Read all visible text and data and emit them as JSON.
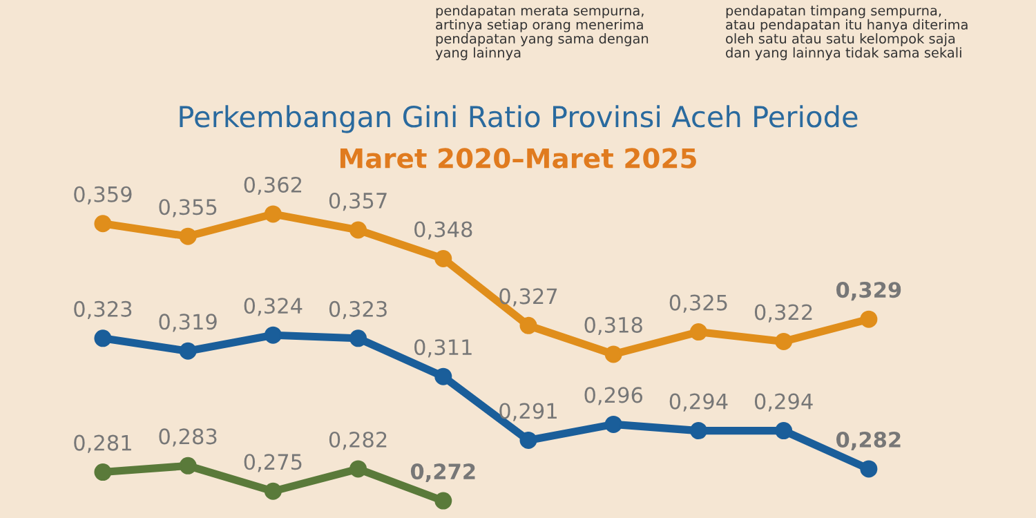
{
  "chart_data": {
    "type": "line",
    "title": "Perkembangan Gini Ratio Provinsi Aceh Periode",
    "subtitle": "Maret 2020–Maret 2025",
    "annotations": [
      "pendapatan merata sempurna,\nartinya setiap orang menerima\npendapatan yang sama dengan\nyang lainnya",
      "pendapatan timpang sempurna,\natau pendapatan itu hanya diterima\noleh satu atau satu kelompok saja\ndan yang lainnya tidak sama sekali"
    ],
    "categories": [
      null,
      null,
      null,
      null,
      null,
      null,
      null,
      null,
      null,
      null,
      null
    ],
    "series": [
      {
        "color": "#e08e1b",
        "values": [
          0.359,
          0.355,
          0.362,
          0.357,
          0.348,
          0.327,
          0.318,
          0.325,
          0.322,
          0.329,
          null
        ],
        "value_labels": [
          "0,359",
          "0,355",
          "0,362",
          "0,357",
          "0,348",
          "0,327",
          "0,318",
          "0,325",
          "0,322",
          "0,329",
          null
        ]
      },
      {
        "color": "#1a5e9a",
        "values": [
          0.323,
          0.319,
          0.324,
          0.323,
          0.311,
          0.291,
          0.296,
          0.294,
          0.294,
          0.282,
          null
        ],
        "value_labels": [
          "0,323",
          "0,319",
          "0,324",
          "0,323",
          "0,311",
          "0,291",
          "0,296",
          "0,294",
          "0,294",
          "0,282",
          null
        ]
      },
      {
        "color": "#5a7a3a",
        "values": [
          0.281,
          0.283,
          0.275,
          0.282,
          0.272,
          null,
          null,
          null,
          null,
          null,
          null
        ],
        "value_labels": [
          "0,281",
          "0,283",
          "0,275",
          "0,282",
          "0,272",
          null,
          null,
          null,
          null,
          null,
          null
        ]
      }
    ],
    "tick_labels": false,
    "grid": false,
    "legend": false,
    "marker": "circle",
    "line_style": "solid"
  }
}
